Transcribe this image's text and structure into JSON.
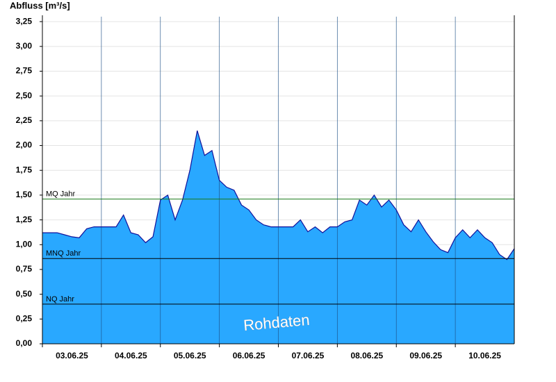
{
  "chart_data": {
    "type": "area",
    "y_label": "Abfluss [m³/s]",
    "annotation": "Rohdaten",
    "days": [
      "03.06.25",
      "04.06.25",
      "05.06.25",
      "06.06.25",
      "07.06.25",
      "08.06.25",
      "09.06.25",
      "10.06.25"
    ],
    "values": [
      1.12,
      1.12,
      1.12,
      1.1,
      1.08,
      1.07,
      1.16,
      1.18,
      1.18,
      1.18,
      1.18,
      1.3,
      1.12,
      1.1,
      1.02,
      1.08,
      1.45,
      1.5,
      1.25,
      1.45,
      1.75,
      2.15,
      1.9,
      1.95,
      1.65,
      1.58,
      1.55,
      1.4,
      1.35,
      1.25,
      1.2,
      1.18,
      1.18,
      1.18,
      1.18,
      1.25,
      1.13,
      1.18,
      1.12,
      1.18,
      1.18,
      1.23,
      1.25,
      1.45,
      1.4,
      1.5,
      1.38,
      1.45,
      1.35,
      1.2,
      1.13,
      1.25,
      1.13,
      1.03,
      0.95,
      0.92,
      1.07,
      1.15,
      1.07,
      1.15,
      1.07,
      1.02,
      0.9,
      0.85,
      0.96
    ],
    "color": "#29a8ff",
    "line_color": "#10109a",
    "ylim": [
      0,
      3.3
    ],
    "yticks": [
      {
        "value": 0,
        "label": "0,00"
      },
      {
        "value": 0.25,
        "label": "0,25"
      },
      {
        "value": 0.5,
        "label": "0,50"
      },
      {
        "value": 0.75,
        "label": "0,75"
      },
      {
        "value": 1,
        "label": "1,00"
      },
      {
        "value": 1.25,
        "label": "1,25"
      },
      {
        "value": 1.5,
        "label": "1,50"
      },
      {
        "value": 1.75,
        "label": "1,75"
      },
      {
        "value": 2,
        "label": "2,00"
      },
      {
        "value": 2.25,
        "label": "2,25"
      },
      {
        "value": 2.5,
        "label": "2,50"
      },
      {
        "value": 2.75,
        "label": "2,75"
      },
      {
        "value": 3,
        "label": "3,00"
      },
      {
        "value": 3.25,
        "label": "3,25"
      }
    ],
    "grid": true,
    "reference_lines": [
      {
        "label": "MQ Jahr",
        "value": 1.46,
        "color": "#1a7a1a"
      },
      {
        "label": "MNQ Jahr",
        "value": 0.86,
        "color": "#000000"
      },
      {
        "label": "NQ Jahr",
        "value": 0.4,
        "color": "#000000"
      }
    ]
  }
}
